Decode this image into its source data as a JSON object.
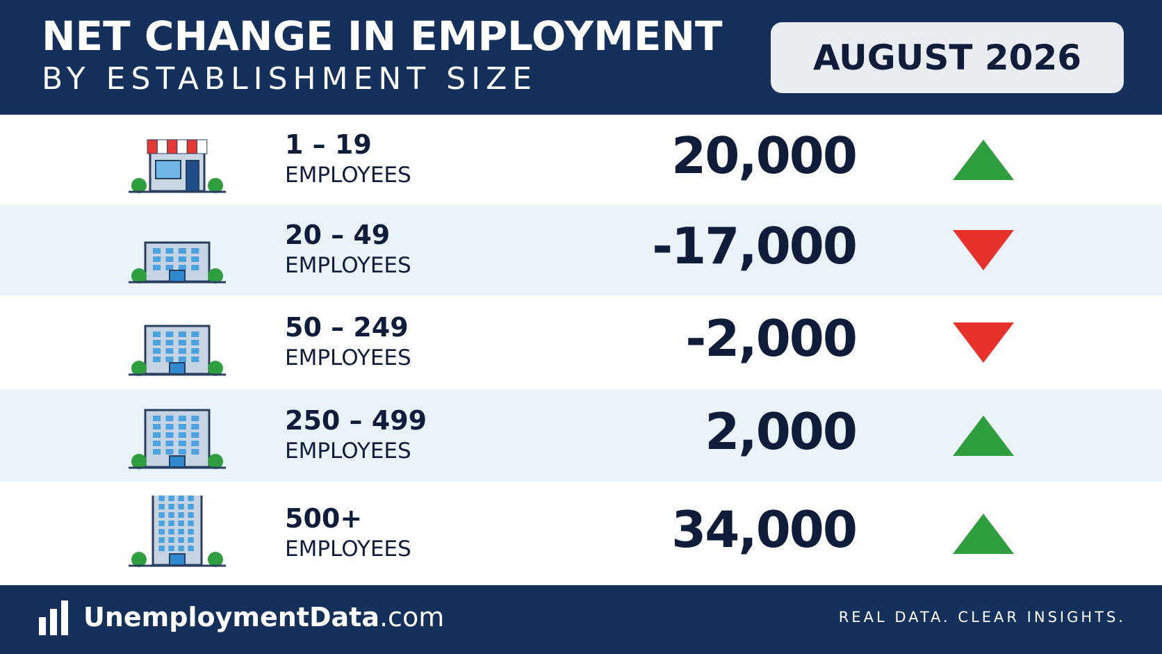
{
  "header": {
    "title": "NET CHANGE IN EMPLOYMENT",
    "subtitle": "BY ESTABLISHMENT SIZE",
    "period": "AUGUST 2026"
  },
  "table": {
    "rows": [
      {
        "size": "1 – 19",
        "unit": "EMPLOYEES",
        "value": "20,000",
        "trend": "up"
      },
      {
        "size": "20 – 49",
        "unit": "EMPLOYEES",
        "value": "-17,000",
        "trend": "down"
      },
      {
        "size": "50 – 249",
        "unit": "EMPLOYEES",
        "value": "-2,000",
        "trend": "down"
      },
      {
        "size": "250 – 499",
        "unit": "EMPLOYEES",
        "value": "2,000",
        "trend": "up"
      },
      {
        "size": "500+",
        "unit": "EMPLOYEES",
        "value": "34,000",
        "trend": "up"
      }
    ]
  },
  "footer": {
    "brand": "UnemploymentData",
    "brand_suffix": ".com",
    "tagline": "REAL DATA. CLEAR INSIGHTS."
  }
}
